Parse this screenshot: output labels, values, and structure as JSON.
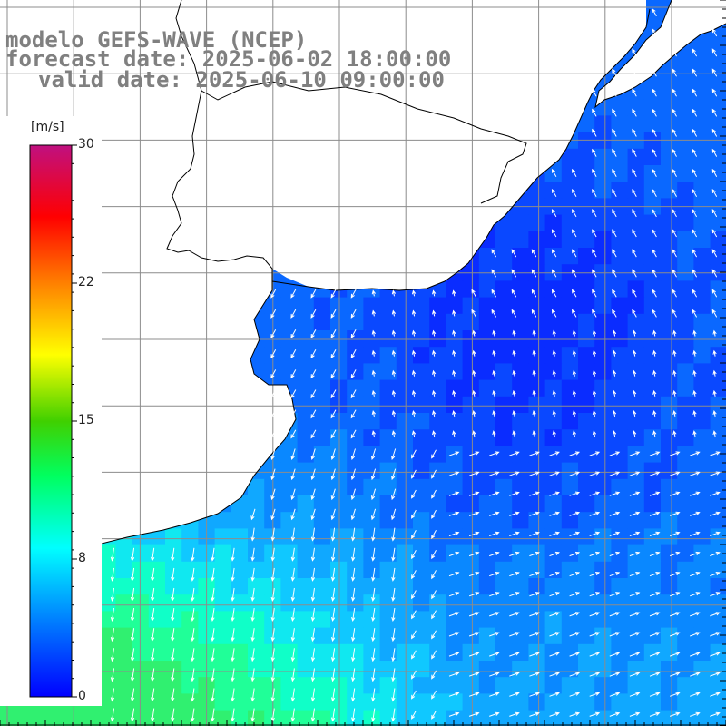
{
  "header": {
    "line1": "modelo GEFS-WAVE (NCEP)",
    "line2": "forecast date: 2025-06-02 18:00:00",
    "line3": "valid date: 2025-06-10 09:00:00"
  },
  "colorbar": {
    "unit": "[m/s]",
    "ticks": [
      "30",
      "22",
      "15",
      "8",
      "0"
    ],
    "range": [
      0,
      30
    ],
    "colors": [
      "#0000ff",
      "#00a0ff",
      "#00ffff",
      "#00ff60",
      "#40d000",
      "#ffff00",
      "#ff8000",
      "#ff0000",
      "#d00060",
      "#c01080"
    ]
  },
  "map": {
    "land_color": "#ffffff",
    "coast_color": "#000000",
    "grid_color": "#909090",
    "ocean_low_color": "#0a3cff",
    "ocean_high_color": "#20ff90",
    "arrow_color": "#ffffff"
  }
}
